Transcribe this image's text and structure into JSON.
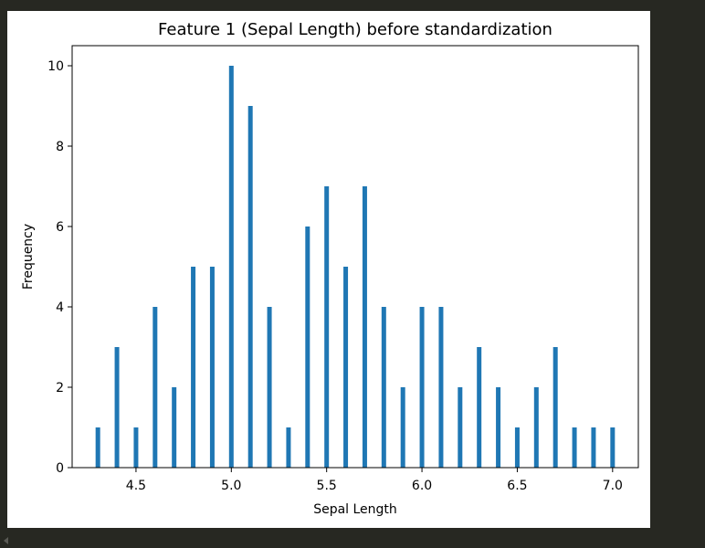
{
  "chart_data": {
    "type": "bar",
    "title": "Feature 1 (Sepal Length) before standardization",
    "xlabel": "Sepal Length",
    "ylabel": "Frequency",
    "x": [
      4.3,
      4.4,
      4.5,
      4.6,
      4.7,
      4.8,
      4.9,
      5.0,
      5.1,
      5.2,
      5.3,
      5.4,
      5.5,
      5.6,
      5.7,
      5.8,
      5.9,
      6.0,
      6.1,
      6.2,
      6.3,
      6.4,
      6.5,
      6.6,
      6.7,
      6.8,
      6.9,
      7.0
    ],
    "values": [
      1,
      3,
      1,
      4,
      2,
      5,
      5,
      10,
      9,
      4,
      1,
      6,
      7,
      5,
      7,
      4,
      2,
      4,
      4,
      2,
      3,
      2,
      1,
      2,
      3,
      1,
      1,
      1
    ],
    "xlim": [
      4.165,
      7.135
    ],
    "ylim": [
      0,
      10.5
    ],
    "xticks": [
      4.5,
      5.0,
      5.5,
      6.0,
      6.5,
      7.0
    ],
    "xtick_labels": [
      "4.5",
      "5.0",
      "5.5",
      "6.0",
      "6.5",
      "7.0"
    ],
    "yticks": [
      0,
      2,
      4,
      6,
      8,
      10
    ],
    "ytick_labels": [
      "0",
      "2",
      "4",
      "6",
      "8",
      "10"
    ],
    "bar_color": "#1f77b4",
    "grid": false
  }
}
